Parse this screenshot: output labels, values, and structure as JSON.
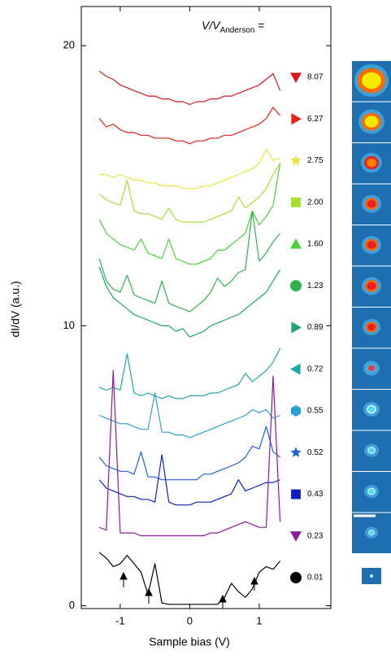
{
  "chart_data": {
    "type": "line",
    "xlabel": "Sample bias (V)",
    "ylabel": "dI/dV (a.u.)",
    "legend_title": {
      "main": "V/V",
      "sub": "Anderson",
      "tail": " ="
    },
    "xlim": [
      -1.56,
      2.03
    ],
    "ylim": [
      -0.1,
      21.4
    ],
    "xticks": [
      -1,
      0,
      1
    ],
    "yticks": [
      0,
      10,
      20
    ],
    "x": [
      -1.3,
      -1.2,
      -1.1,
      -1.0,
      -0.9,
      -0.8,
      -0.7,
      -0.6,
      -0.5,
      -0.4,
      -0.3,
      -0.2,
      -0.1,
      0,
      0.1,
      0.2,
      0.3,
      0.4,
      0.5,
      0.6,
      0.7,
      0.8,
      0.9,
      1.0,
      1.1,
      1.2,
      1.3
    ],
    "series": [
      {
        "name": "8.07",
        "color": "#d7191c",
        "marker": "triangle-down",
        "values": [
          19.1,
          18.9,
          18.8,
          18.6,
          18.5,
          18.4,
          18.3,
          18.2,
          18.2,
          18.1,
          18.1,
          18.0,
          18.0,
          17.9,
          18.0,
          18.0,
          18.1,
          18.1,
          18.2,
          18.2,
          18.3,
          18.4,
          18.5,
          18.6,
          18.8,
          19.0,
          18.4
        ]
      },
      {
        "name": "6.27",
        "color": "#e8201c",
        "marker": "triangle-right",
        "values": [
          17.4,
          17.1,
          17.2,
          17.0,
          16.9,
          16.9,
          16.8,
          16.8,
          16.7,
          16.7,
          16.7,
          16.6,
          16.6,
          16.5,
          16.6,
          16.6,
          16.7,
          16.7,
          16.8,
          16.8,
          16.9,
          17.0,
          17.1,
          17.2,
          17.4,
          17.8,
          17.5
        ]
      },
      {
        "name": "2.75",
        "color": "#e6e63a",
        "marker": "star",
        "values": [
          15.4,
          15.4,
          15.3,
          15.4,
          15.3,
          15.2,
          15.2,
          15.1,
          15.1,
          15.0,
          15.0,
          15.0,
          14.9,
          14.9,
          14.9,
          15.0,
          15.0,
          15.1,
          15.2,
          15.3,
          15.4,
          15.5,
          15.6,
          15.8,
          16.3,
          15.9,
          16.0
        ]
      },
      {
        "name": "2.00",
        "color": "#a6e02e",
        "marker": "square",
        "values": [
          14.7,
          14.5,
          14.4,
          14.3,
          15.2,
          14.1,
          14.0,
          14.0,
          13.9,
          13.8,
          14.2,
          13.8,
          13.7,
          13.7,
          13.7,
          13.7,
          13.8,
          13.9,
          14.0,
          14.1,
          14.6,
          14.2,
          14.4,
          14.6,
          14.9,
          15.4,
          15.8
        ]
      },
      {
        "name": "1.60",
        "color": "#4cd13a",
        "marker": "triangle-up",
        "values": [
          13.8,
          13.3,
          13.1,
          12.9,
          12.8,
          12.7,
          13.1,
          12.6,
          12.5,
          12.4,
          13.1,
          12.4,
          12.3,
          12.2,
          12.2,
          12.3,
          12.4,
          12.7,
          12.7,
          12.9,
          13.1,
          13.3,
          14.1,
          13.6,
          13.9,
          14.3,
          15.8
        ]
      },
      {
        "name": "1.23",
        "color": "#2fb34a",
        "marker": "circle",
        "values": [
          12.4,
          11.6,
          11.3,
          11.2,
          11.8,
          11.1,
          11.0,
          10.9,
          10.8,
          11.6,
          10.8,
          10.7,
          10.6,
          10.5,
          10.7,
          10.9,
          11.2,
          11.7,
          11.4,
          11.6,
          11.9,
          12.0,
          14.1,
          12.3,
          12.6,
          13.0,
          13.3
        ]
      },
      {
        "name": "0.89",
        "color": "#1fa470",
        "marker": "triangle-right",
        "values": [
          12.1,
          11.4,
          11.0,
          10.8,
          10.6,
          10.4,
          10.3,
          10.2,
          10.1,
          10.0,
          10.0,
          9.8,
          9.9,
          9.6,
          9.7,
          9.8,
          10.0,
          10.1,
          10.2,
          10.3,
          10.4,
          10.6,
          10.8,
          11.0,
          11.2,
          11.6,
          12.0
        ]
      },
      {
        "name": "0.72",
        "color": "#20a8a8",
        "marker": "triangle-left",
        "values": [
          7.8,
          7.7,
          7.8,
          7.7,
          9.0,
          7.6,
          7.5,
          7.6,
          7.5,
          7.4,
          7.5,
          7.4,
          7.4,
          7.5,
          7.5,
          7.5,
          7.6,
          7.6,
          7.7,
          7.8,
          7.9,
          8.3,
          8.0,
          8.2,
          8.4,
          8.7,
          9.2
        ]
      },
      {
        "name": "0.55",
        "color": "#2aa0d8",
        "marker": "hexagon",
        "values": [
          6.8,
          6.7,
          6.6,
          6.5,
          6.5,
          6.4,
          6.3,
          6.3,
          7.6,
          6.2,
          6.2,
          6.1,
          6.1,
          6.0,
          6.1,
          6.2,
          6.3,
          6.4,
          6.5,
          6.6,
          6.7,
          6.8,
          7.0,
          6.9,
          7.0,
          6.7,
          6.8
        ]
      },
      {
        "name": "0.52",
        "color": "#2060d8",
        "marker": "star",
        "values": [
          5.3,
          5.0,
          4.9,
          4.8,
          4.8,
          4.7,
          5.5,
          4.6,
          4.6,
          4.5,
          4.5,
          4.5,
          4.5,
          4.5,
          4.5,
          4.7,
          4.7,
          4.8,
          4.9,
          5.0,
          5.1,
          5.3,
          5.7,
          5.6,
          6.4,
          5.5,
          5.3
        ]
      },
      {
        "name": "0.43",
        "color": "#1020c0",
        "marker": "square",
        "values": [
          4.5,
          4.2,
          4.1,
          4.0,
          3.9,
          3.9,
          3.8,
          3.8,
          3.7,
          5.4,
          3.7,
          3.6,
          3.6,
          3.6,
          3.7,
          3.7,
          3.7,
          3.8,
          3.9,
          4.0,
          4.5,
          4.1,
          4.2,
          4.3,
          4.4,
          4.4,
          4.5
        ]
      },
      {
        "name": "0.23",
        "color": "#8a1a9a",
        "marker": "triangle-down",
        "values": [
          2.8,
          2.7,
          8.4,
          2.6,
          2.6,
          2.6,
          2.5,
          2.5,
          2.5,
          2.5,
          2.5,
          2.5,
          2.5,
          2.5,
          2.5,
          2.5,
          2.6,
          2.6,
          2.7,
          2.8,
          2.9,
          3.0,
          2.9,
          2.8,
          2.8,
          8.2,
          3.0
        ]
      },
      {
        "name": "0.01",
        "color": "#000000",
        "marker": "circle",
        "values": [
          1.9,
          1.7,
          1.4,
          1.5,
          1.8,
          1.5,
          1.2,
          0.4,
          1.5,
          0.1,
          0.05,
          0.05,
          0.05,
          0.05,
          0.05,
          0.05,
          0.05,
          0.05,
          0.3,
          0.8,
          0.5,
          0.3,
          0.6,
          1.2,
          1.4,
          1.3,
          1.6
        ]
      }
    ]
  }
}
